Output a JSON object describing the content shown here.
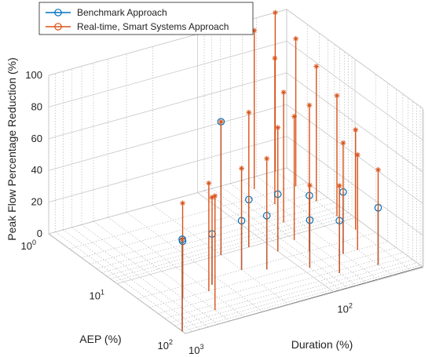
{
  "chart_data": {
    "type": "stem3d",
    "zlabel": "Peak Flow Percentage Reduction (%)",
    "ylabel": "AEP (%)",
    "xlabel": "Duration (%)",
    "zlim": [
      0,
      100
    ],
    "z_ticks": [
      "0",
      "20",
      "40",
      "60",
      "80",
      "100"
    ],
    "aep_ticks": [
      {
        "base": "10",
        "exp": "0"
      },
      {
        "base": "10",
        "exp": "1"
      },
      {
        "base": "10",
        "exp": "2"
      }
    ],
    "duration_ticks": [
      {
        "base": "10",
        "exp": "2"
      },
      {
        "base": "10",
        "exp": "3"
      }
    ],
    "aep_log_range": [
      0,
      2
    ],
    "duration_log_range": [
      1.4,
      3
    ],
    "grid": true,
    "legend_position": "top-left",
    "colors": {
      "benchmark": "#0072BD",
      "realtime": "#D95319"
    },
    "series": [
      {
        "name": "Benchmark Approach",
        "marker": "circle",
        "points": [
          {
            "duration": 40,
            "aep": 60,
            "value": 36
          },
          {
            "duration": 50,
            "aep": 30,
            "value": 39
          },
          {
            "duration": 70,
            "aep": 55,
            "value": 33
          },
          {
            "duration": 70,
            "aep": 20,
            "value": 35
          },
          {
            "duration": 90,
            "aep": 35,
            "value": 30
          },
          {
            "duration": 100,
            "aep": 15,
            "value": 36
          },
          {
            "duration": 130,
            "aep": 10,
            "value": 30
          },
          {
            "duration": 150,
            "aep": 25,
            "value": 34
          },
          {
            "duration": 200,
            "aep": 20,
            "value": 31
          },
          {
            "duration": 200,
            "aep": 10,
            "value": 84
          },
          {
            "duration": 350,
            "aep": 25,
            "value": 32
          },
          {
            "duration": 600,
            "aep": 30,
            "value": 36
          },
          {
            "duration": 1000,
            "aep": 90,
            "value": 58
          }
        ]
      },
      {
        "name": "Real-time, Smart Systems Approach",
        "marker": "circle-star",
        "points": [
          {
            "duration": 40,
            "aep": 60,
            "value": 60
          },
          {
            "duration": 50,
            "aep": 30,
            "value": 70
          },
          {
            "duration": 70,
            "aep": 55,
            "value": 55
          },
          {
            "duration": 70,
            "aep": 20,
            "value": 92
          },
          {
            "duration": 90,
            "aep": 35,
            "value": 52
          },
          {
            "duration": 100,
            "aep": 15,
            "value": 78
          },
          {
            "duration": 130,
            "aep": 10,
            "value": 85
          },
          {
            "duration": 150,
            "aep": 25,
            "value": 70
          },
          {
            "duration": 200,
            "aep": 20,
            "value": 64
          },
          {
            "duration": 200,
            "aep": 10,
            "value": 84
          },
          {
            "duration": 350,
            "aep": 25,
            "value": 55
          },
          {
            "duration": 600,
            "aep": 30,
            "value": 60
          },
          {
            "duration": 1000,
            "aep": 90,
            "value": 58
          },
          {
            "duration": 400,
            "aep": 30,
            "value": 68
          },
          {
            "duration": 500,
            "aep": 60,
            "value": 72
          },
          {
            "duration": 30,
            "aep": 1,
            "value": 100
          },
          {
            "duration": 30,
            "aep": 2,
            "value": 93
          },
          {
            "duration": 30,
            "aep": 4,
            "value": 85
          },
          {
            "duration": 30,
            "aep": 8,
            "value": 76
          },
          {
            "duration": 30,
            "aep": 15,
            "value": 63
          },
          {
            "duration": 40,
            "aep": 30,
            "value": 60
          },
          {
            "duration": 50,
            "aep": 1.5,
            "value": 100
          },
          {
            "duration": 50,
            "aep": 3,
            "value": 92
          },
          {
            "duration": 60,
            "aep": 6,
            "value": 82
          },
          {
            "duration": 70,
            "aep": 12,
            "value": 78
          }
        ]
      }
    ]
  }
}
